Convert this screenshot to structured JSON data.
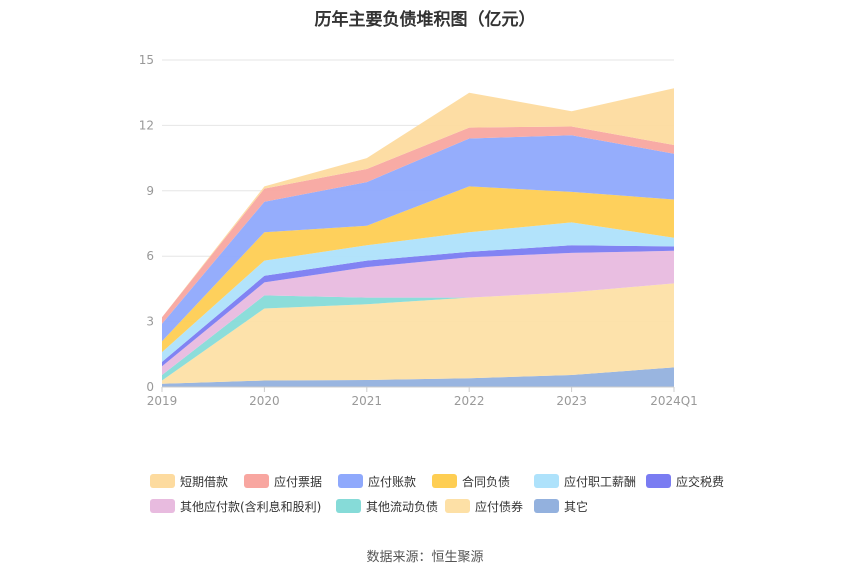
{
  "chart_data": {
    "type": "area",
    "stacked": true,
    "title": "历年主要负债堆积图（亿元）",
    "categories": [
      "2019",
      "2020",
      "2021",
      "2022",
      "2023",
      "2024Q1"
    ],
    "ylim": [
      0,
      15
    ],
    "yticks": [
      0,
      3,
      6,
      9,
      12,
      15
    ],
    "legend_position": "bottom",
    "series": [
      {
        "name": "其它",
        "color": "#93b1de",
        "values": [
          0.15,
          0.3,
          0.32,
          0.4,
          0.55,
          0.9
        ]
      },
      {
        "name": "应付债券",
        "color": "#fde0a6",
        "values": [
          0.15,
          3.3,
          3.48,
          3.7,
          3.8,
          3.85
        ]
      },
      {
        "name": "其他流动负债",
        "color": "#86dbd8",
        "values": [
          0.25,
          0.6,
          0.3,
          0.0,
          0.0,
          0.0
        ]
      },
      {
        "name": "其他应付款(含利息和股利)",
        "color": "#e8bbdf",
        "values": [
          0.4,
          0.6,
          1.4,
          1.85,
          1.8,
          1.5
        ]
      },
      {
        "name": "应交税费",
        "color": "#7a7cf2",
        "values": [
          0.2,
          0.3,
          0.3,
          0.25,
          0.35,
          0.2
        ]
      },
      {
        "name": "应付职工薪酬",
        "color": "#aee2fb",
        "values": [
          0.45,
          0.7,
          0.7,
          0.9,
          1.05,
          0.4
        ]
      },
      {
        "name": "合同负债",
        "color": "#fece53",
        "values": [
          0.5,
          1.3,
          0.9,
          2.1,
          1.4,
          1.75
        ]
      },
      {
        "name": "应付账款",
        "color": "#8fa9fc",
        "values": [
          0.8,
          1.4,
          2.0,
          2.2,
          2.6,
          2.1
        ]
      },
      {
        "name": "应付票据",
        "color": "#f8a6a0",
        "values": [
          0.3,
          0.6,
          0.6,
          0.5,
          0.4,
          0.4
        ]
      },
      {
        "name": "短期借款",
        "color": "#fddb9f",
        "values": [
          0.0,
          0.1,
          0.5,
          1.6,
          0.7,
          2.6
        ]
      }
    ],
    "legend_order": [
      "短期借款",
      "应付票据",
      "应付账款",
      "合同负债",
      "应付职工薪酬",
      "应交税费",
      "其他应付款(含利息和股利)",
      "其他流动负债",
      "应付债券",
      "其它"
    ]
  },
  "source": "数据来源：恒生聚源"
}
